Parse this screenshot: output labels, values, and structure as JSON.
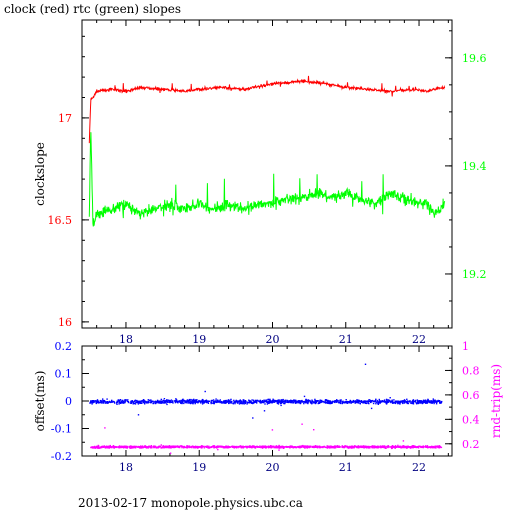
{
  "title": "clock (red) rtc (green) slopes",
  "footer": "2013-02-17  monopole.physics.ubc.ca",
  "chart_data": [
    {
      "type": "line",
      "xlim": [
        17.4,
        22.45
      ],
      "x_ticks": [
        "18",
        "19",
        "20",
        "21",
        "22"
      ],
      "ylabel": "clockslope",
      "ylim_left": [
        15.97,
        17.48
      ],
      "y_ticks_left": [
        "16",
        "16.5",
        "17"
      ],
      "ylim_right": [
        19.1,
        19.67
      ],
      "y_ticks_right": [
        "19.2",
        "19.4",
        "19.6"
      ],
      "colors": {
        "clock": "#ff0000",
        "rtc": "#00ff00",
        "axis_left": "#ff0000",
        "axis_right": "#00ff00"
      },
      "series": [
        {
          "name": "clock",
          "axis": "left",
          "x": [
            17.5,
            17.52,
            17.55,
            17.6,
            17.8,
            18.0,
            18.2,
            18.5,
            18.8,
            19.0,
            19.3,
            19.6,
            19.9,
            20.1,
            20.4,
            20.7,
            21.0,
            21.3,
            21.6,
            21.9,
            22.1,
            22.2,
            22.35
          ],
          "values": [
            16.88,
            17.09,
            17.1,
            17.13,
            17.14,
            17.13,
            17.15,
            17.14,
            17.13,
            17.14,
            17.15,
            17.14,
            17.16,
            17.17,
            17.18,
            17.17,
            17.15,
            17.14,
            17.13,
            17.14,
            17.13,
            17.14,
            17.15
          ]
        },
        {
          "name": "rtc",
          "axis": "right",
          "x": [
            17.5,
            17.52,
            17.55,
            17.6,
            17.8,
            18.0,
            18.2,
            18.4,
            18.6,
            18.8,
            19.0,
            19.2,
            19.4,
            19.6,
            19.8,
            20.0,
            20.2,
            20.4,
            20.6,
            20.8,
            21.0,
            21.2,
            21.4,
            21.6,
            21.8,
            22.0,
            22.1,
            22.2,
            22.35
          ],
          "values": [
            19.31,
            19.47,
            19.29,
            19.31,
            19.32,
            19.33,
            19.31,
            19.32,
            19.33,
            19.32,
            19.33,
            19.32,
            19.33,
            19.32,
            19.33,
            19.33,
            19.34,
            19.34,
            19.35,
            19.34,
            19.35,
            19.34,
            19.33,
            19.35,
            19.34,
            19.33,
            19.33,
            19.31,
            19.33
          ]
        }
      ]
    },
    {
      "type": "scatter",
      "xlim": [
        17.4,
        22.45
      ],
      "x_ticks": [
        "18",
        "19",
        "20",
        "21",
        "22"
      ],
      "ylabel_left": "offset(ms)",
      "ylim_left": [
        -0.2,
        0.2
      ],
      "y_ticks_left": [
        "-0.2",
        "-0.1",
        "0",
        "0.1",
        "0.2"
      ],
      "ylabel_right": "rnd-trip(ms)",
      "ylim_right": [
        0.1,
        1.0
      ],
      "y_ticks_right": [
        "0.2",
        "0.4",
        "0.6",
        "0.8",
        "1"
      ],
      "colors": {
        "offset": "#0000ff",
        "rnd_trip": "#ff00ff"
      },
      "series": [
        {
          "name": "offset(ms)",
          "axis": "left",
          "x_range": [
            17.5,
            22.3
          ],
          "center": 0.0,
          "spread": 0.012
        },
        {
          "name": "rnd-trip(ms)",
          "axis": "right",
          "x_range": [
            17.5,
            22.3
          ],
          "center": 0.18,
          "spread": 0.015
        }
      ]
    }
  ]
}
